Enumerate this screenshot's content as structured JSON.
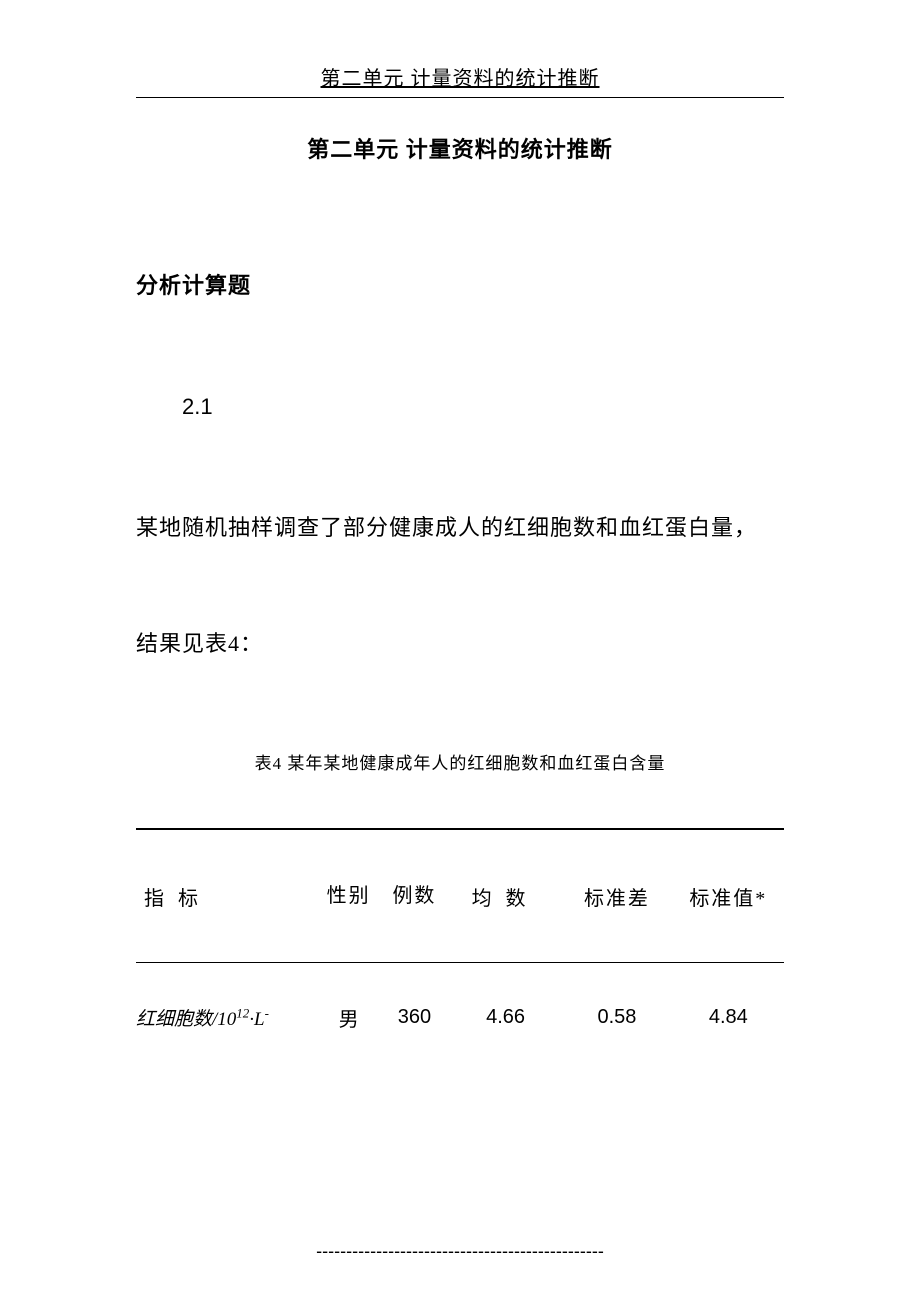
{
  "header": {
    "running_title": "第二单元 计量资料的统计推断"
  },
  "main_title": "第二单元 计量资料的统计推断",
  "section_title": "分析计算题",
  "question": {
    "number": "2.1",
    "text_line1": "某地随机抽样调查了部分健康成人的红细胞数和血红蛋白量，",
    "text_line2": "结果见表4："
  },
  "table": {
    "caption": "表4 某年某地健康成年人的红细胞数和血红蛋白含量",
    "columns": {
      "indicator": "指标",
      "gender": "性别",
      "count": "例数",
      "mean": "均数",
      "std": "标准差",
      "ref": "标准值*"
    },
    "rows": [
      {
        "indicator_prefix": "红细胞数/10",
        "indicator_sup": "12",
        "indicator_suffix": "·L",
        "indicator_sup2": "-",
        "gender": "男",
        "count": "360",
        "mean": "4.66",
        "std": "0.58",
        "ref": "4.84"
      }
    ]
  },
  "footer": {
    "divider": "------------------------------------------------"
  }
}
